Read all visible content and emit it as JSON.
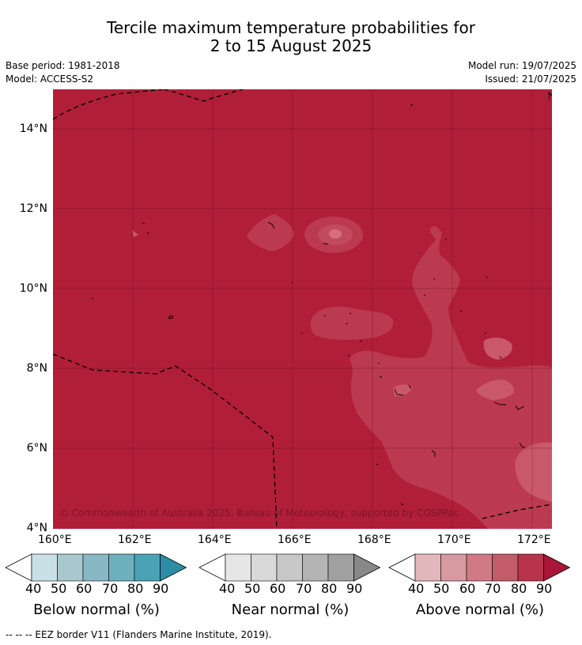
{
  "title": {
    "line1": "Tercile maximum temperature probabilities for",
    "line2": "2 to 15 August 2025"
  },
  "meta": {
    "base_period": "Base period: 1981-2018",
    "model": "Model: ACCESS-S2",
    "model_run": "Model run: 19/07/2025",
    "issued": "Issued: 21/07/2025"
  },
  "map": {
    "lat_labels": [
      "14°N",
      "12°N",
      "10°N",
      "8°N",
      "6°N",
      "4°N"
    ],
    "lon_labels": [
      "160°E",
      "162°E",
      "164°E",
      "166°E",
      "168°E",
      "170°E",
      "172°E"
    ],
    "copyright": "© Commonwealth of Australia 2025, Bureau of Meteorology, supported by COSPPac",
    "colors": {
      "above_90": "#b11e38",
      "above_80": "#bb3a4f",
      "above_70": "#c9596a"
    }
  },
  "colorbars": [
    {
      "label": "Below normal (%)",
      "ticks": [
        "40",
        "50",
        "60",
        "70",
        "80",
        "90"
      ],
      "colors": [
        "#ffffff",
        "#c9e0e6",
        "#a9c8ce",
        "#89b8c5",
        "#6fb0bf",
        "#4aa3b5",
        "#2c8ea6"
      ]
    },
    {
      "label": "Near normal (%)",
      "ticks": [
        "40",
        "50",
        "60",
        "70",
        "80",
        "90"
      ],
      "colors": [
        "#ffffff",
        "#e6e6e6",
        "#d9d9d9",
        "#c8c8c8",
        "#b4b4b4",
        "#a0a0a0",
        "#888888"
      ]
    },
    {
      "label": "Above normal (%)",
      "ticks": [
        "40",
        "50",
        "60",
        "70",
        "80",
        "90"
      ],
      "colors": [
        "#ffffff",
        "#e3b8bd",
        "#d79aa1",
        "#cf7a84",
        "#c45b69",
        "#b9344a",
        "#a8163a"
      ]
    }
  ],
  "footer": "--  --  -- EEZ border V11 (Flanders Marine Institute, 2019)."
}
